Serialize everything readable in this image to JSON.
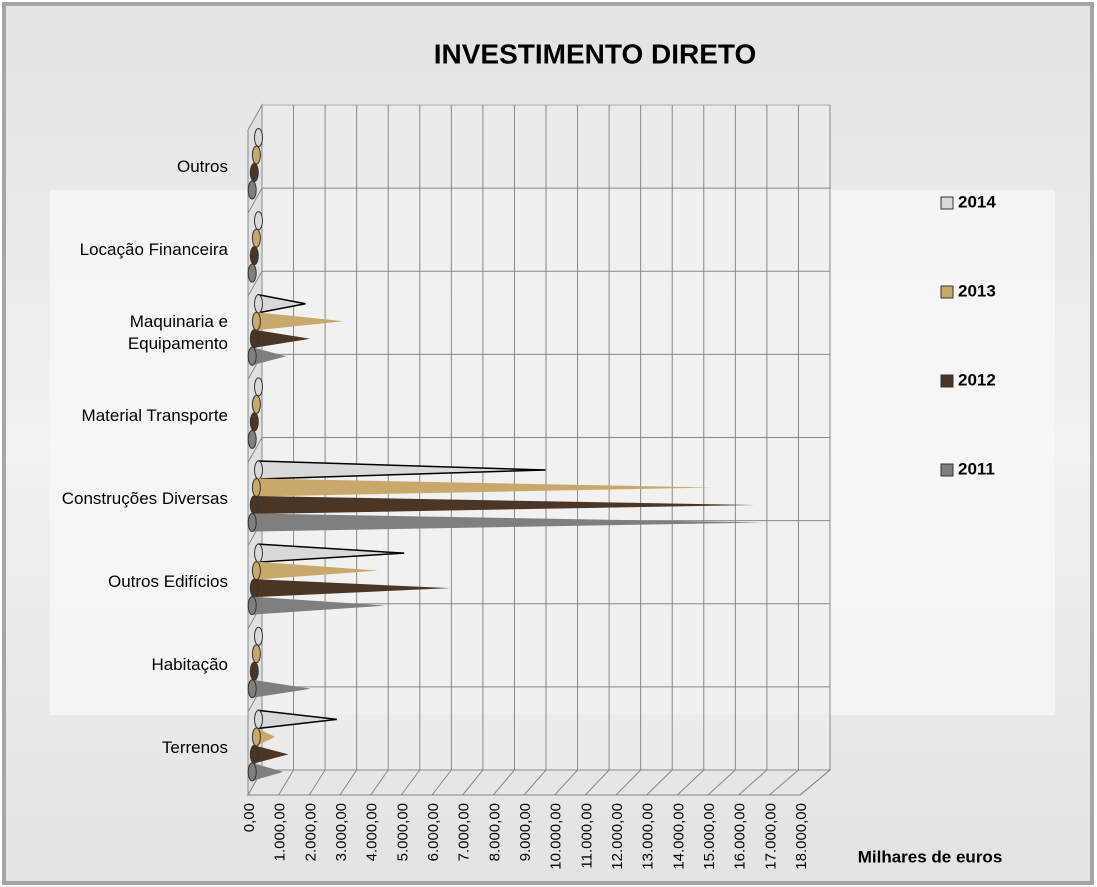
{
  "chart_data": {
    "type": "bar",
    "orientation": "horizontal",
    "style": "3d-cone",
    "title": "INVESTIMENTO  DIRETO",
    "x_label": "Milhares de euros",
    "categories": [
      "Terrenos",
      "Habitação",
      "Outros Edifícios",
      "Construções Diversas",
      "Material Transporte",
      "Maquinaria e\nEquipamento",
      "Locação Financeira",
      "Outros"
    ],
    "series": [
      {
        "name": "2014",
        "color": "#d9d9d9",
        "values": [
          2500,
          50,
          4650,
          9160,
          50,
          1500,
          50,
          50
        ]
      },
      {
        "name": "2013",
        "color": "#c9a96b",
        "values": [
          600,
          50,
          3900,
          14650,
          50,
          2800,
          50,
          50
        ]
      },
      {
        "name": "2012",
        "color": "#4b3626",
        "values": [
          1100,
          50,
          6300,
          16100,
          50,
          1800,
          50,
          50
        ]
      },
      {
        "name": "2011",
        "color": "#7f7f7f",
        "values": [
          1000,
          1900,
          4300,
          16580,
          50,
          1100,
          50,
          50
        ]
      }
    ],
    "xlim": [
      0,
      18000
    ],
    "xticks": [
      {
        "value": 0,
        "label": "0,00"
      },
      {
        "value": 1000,
        "label": "1.000,00"
      },
      {
        "value": 2000,
        "label": "2.000,00"
      },
      {
        "value": 3000,
        "label": "3.000,00"
      },
      {
        "value": 4000,
        "label": "4.000,00"
      },
      {
        "value": 5000,
        "label": "5.000,00"
      },
      {
        "value": 6000,
        "label": "6.000,00"
      },
      {
        "value": 7000,
        "label": "7.000,00"
      },
      {
        "value": 8000,
        "label": "8.000,00"
      },
      {
        "value": 9000,
        "label": "9.000,00"
      },
      {
        "value": 10000,
        "label": "10.000,00"
      },
      {
        "value": 11000,
        "label": "11.000,00"
      },
      {
        "value": 12000,
        "label": "12.000,00"
      },
      {
        "value": 13000,
        "label": "13.000,00"
      },
      {
        "value": 14000,
        "label": "14.000,00"
      },
      {
        "value": 15000,
        "label": "15.000,00"
      },
      {
        "value": 16000,
        "label": "16.000,00"
      },
      {
        "value": 17000,
        "label": "17.000,00"
      },
      {
        "value": 18000,
        "label": "18.000,00"
      }
    ],
    "grid": true,
    "legend": "right"
  }
}
